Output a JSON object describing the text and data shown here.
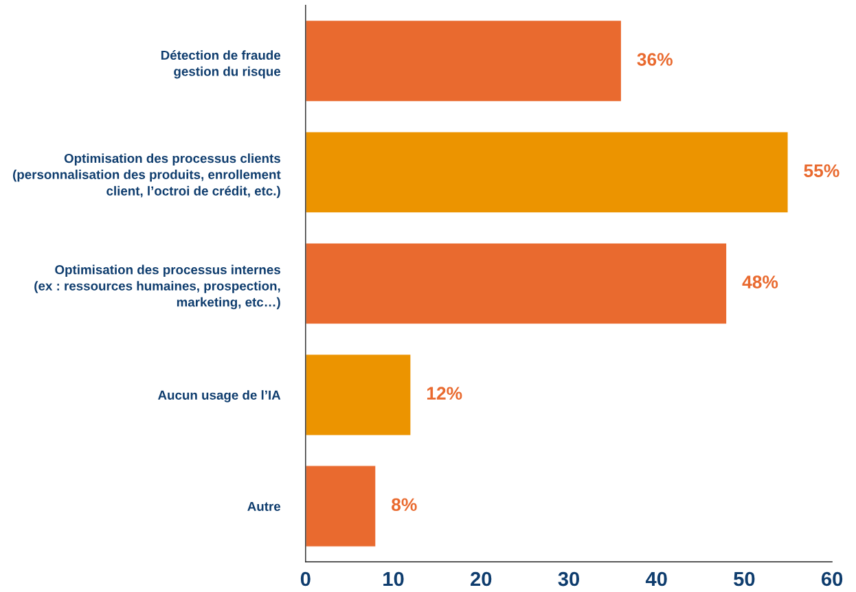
{
  "chart_data": {
    "type": "bar",
    "orientation": "horizontal",
    "categories": [
      "Détection de fraude\ngestion du risque",
      "Optimisation des processus clients\n(personnalisation des produits, enrollement\nclient, l’octroi de crédit, etc.)",
      "Optimisation des processus internes\n(ex : ressources humaines, prospection,\nmarketing, etc…)",
      "Aucun usage de l’IA",
      "Autre"
    ],
    "values": [
      36,
      55,
      48,
      12,
      8
    ],
    "colors": [
      "#e96a2f",
      "#ec9400",
      "#e96a2f",
      "#ec9400",
      "#e96a2f"
    ],
    "value_labels": [
      "36%",
      "55%",
      "48%",
      "12%",
      "8%"
    ],
    "xlim": [
      0,
      60
    ],
    "xticks": [
      0,
      10,
      20,
      30,
      40,
      50,
      60
    ],
    "grid": false,
    "legend": false
  }
}
